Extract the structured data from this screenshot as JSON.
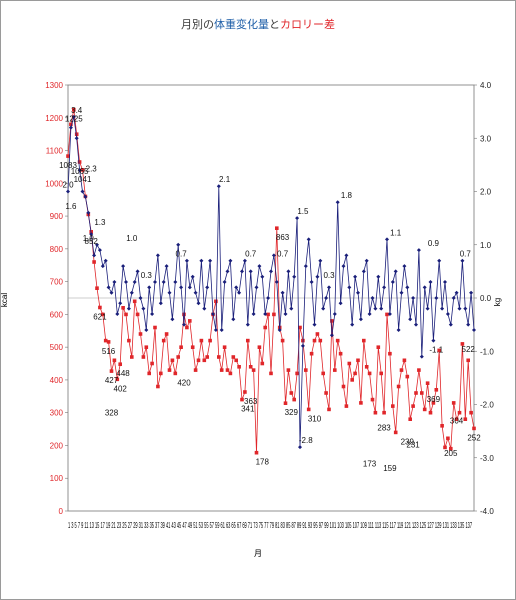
{
  "chart_data": {
    "type": "line",
    "title_parts": [
      {
        "text": "月別の",
        "color": "#3a3a3a"
      },
      {
        "text": "体重変化量",
        "color": "#1f5fa8"
      },
      {
        "text": "と",
        "color": "#3a3a3a"
      },
      {
        "text": "カロリー差",
        "color": "#e0262a"
      }
    ],
    "xlabel": "月",
    "ylabel_left": "kcal",
    "ylabel_right": "kg",
    "y_left": {
      "min": 0,
      "max": 1300,
      "step": 100,
      "ticks": [
        "0",
        "100",
        "200",
        "300",
        "400",
        "500",
        "600",
        "700",
        "800",
        "900",
        "1000",
        "1100",
        "1200",
        "1300"
      ]
    },
    "y_right": {
      "min": -4.0,
      "max": 4.0,
      "step": 1.0,
      "ticks": [
        "-4.0",
        "-3.0",
        "-2.0",
        "-1.0",
        "0.0",
        "1.0",
        "2.0",
        "3.0",
        "4.0"
      ]
    },
    "x_tick_labels": "1 3 5 7 9 11 13 15 17 19 21 23 25 27 29 31 33 35 37 39 41 43 45 47 49 51 53 55 57 59 61 63 65 67 69 71 73 75 77 79 81 83 85 87 89 91 93 95 97 99 101 103 105 107 109 111 113 115 117 119 121 123 125 127 129 131 133 135 137",
    "x": {
      "min": 1,
      "max": 137
    },
    "series": [
      {
        "name": "カロリー差",
        "axis": "left",
        "color": "#e0262a",
        "values": [
          1083,
          1180,
          1225,
          1150,
          1065,
          1041,
          960,
          905,
          852,
          760,
          680,
          621,
          600,
          520,
          516,
          427,
          460,
          402,
          448,
          620,
          600,
          520,
          470,
          640,
          600,
          540,
          470,
          500,
          420,
          450,
          560,
          380,
          420,
          520,
          540,
          430,
          460,
          420,
          470,
          500,
          600,
          560,
          580,
          500,
          430,
          460,
          520,
          460,
          470,
          520,
          600,
          640,
          470,
          430,
          500,
          430,
          420,
          470,
          460,
          440,
          340,
          363,
          520,
          440,
          430,
          178,
          500,
          450,
          560,
          600,
          420,
          600,
          863,
          560,
          520,
          329,
          430,
          360,
          340,
          420,
          560,
          520,
          430,
          310,
          480,
          520,
          540,
          520,
          420,
          360,
          310,
          580,
          430,
          520,
          480,
          380,
          320,
          450,
          400,
          420,
          460,
          330,
          520,
          440,
          420,
          340,
          300,
          500,
          420,
          300,
          600,
          480,
          320,
          240,
          380,
          430,
          460,
          410,
          280,
          320,
          360,
          430,
          360,
          310,
          390,
          300,
          330,
          370,
          490,
          260,
          194,
          222,
          190,
          330,
          280,
          300,
          510,
          280,
          460,
          300,
          252
        ]
      },
      {
        "name": "体重変化量",
        "axis": "right",
        "color": "#1a1f7a",
        "values": [
          2.0,
          3.2,
          3.4,
          3.0,
          2.4,
          2.0,
          1.9,
          1.6,
          1.2,
          0.8,
          1.0,
          0.9,
          0.6,
          0.7,
          0.2,
          0.1,
          0.3,
          -0.3,
          -0.1,
          0.6,
          0.3,
          -0.2,
          0.1,
          0.3,
          0.5,
          0.0,
          -0.2,
          -0.6,
          0.2,
          -0.3,
          0.3,
          0.8,
          -0.1,
          0.3,
          0.6,
          0.1,
          -0.4,
          0.3,
          1.0,
          0.2,
          -0.5,
          0.7,
          0.2,
          0.4,
          0.1,
          -0.1,
          0.7,
          -0.2,
          0.2,
          0.7,
          -0.3,
          -0.6,
          2.1,
          -0.6,
          0.3,
          0.5,
          0.7,
          -0.4,
          0.2,
          0.1,
          0.5,
          0.7,
          -0.5,
          0.5,
          -0.3,
          0.2,
          0.6,
          0.4,
          -0.3,
          0.0,
          0.5,
          0.8,
          0.3,
          -0.6,
          0.1,
          -0.3,
          0.5,
          -0.2,
          0.4,
          1.5,
          -2.8,
          -0.9,
          0.6,
          1.1,
          0.3,
          -0.5,
          0.4,
          0.7,
          -0.2,
          0.0,
          0.2,
          -0.7,
          -0.3,
          1.8,
          -0.1,
          0.6,
          0.8,
          0.2,
          -0.5,
          0.4,
          0.1,
          -0.4,
          0.5,
          0.7,
          -0.3,
          0.0,
          -0.2,
          0.4,
          -0.2,
          0.2,
          1.1,
          -0.3,
          0.3,
          0.5,
          -0.6,
          0.1,
          0.6,
          0.2,
          -0.4,
          0.0,
          -0.5,
          0.9,
          -1.1,
          0.2,
          -0.2,
          0.3,
          -0.8,
          0.0,
          0.7,
          -0.2,
          0.3,
          -0.3,
          -0.5,
          0.0,
          0.1,
          -0.2,
          0.7,
          -0.2,
          -0.5,
          0.1,
          -0.6
        ]
      }
    ],
    "data_labels_left": [
      {
        "i": 1,
        "t": "1083"
      },
      {
        "i": 3,
        "t": "1225"
      },
      {
        "i": 5,
        "t": "1065"
      },
      {
        "i": 6,
        "t": "1041"
      },
      {
        "i": 9,
        "t": "852"
      },
      {
        "i": 12,
        "t": "621"
      },
      {
        "i": 15,
        "t": "516"
      },
      {
        "i": 16,
        "t": "427"
      },
      {
        "i": 18,
        "t": "402"
      },
      {
        "i": 19,
        "t": "448"
      },
      {
        "i": 16,
        "t": "328"
      },
      {
        "i": 40,
        "t": "420"
      },
      {
        "i": 61,
        "t": "341"
      },
      {
        "i": 62,
        "t": "363"
      },
      {
        "i": 66,
        "t": "178"
      },
      {
        "i": 73,
        "t": "863"
      },
      {
        "i": 76,
        "t": "329"
      },
      {
        "i": 84,
        "t": "310"
      },
      {
        "i": 102,
        "t": "173"
      },
      {
        "i": 107,
        "t": "283"
      },
      {
        "i": 109,
        "t": "159"
      },
      {
        "i": 115,
        "t": "239"
      },
      {
        "i": 117,
        "t": "231"
      },
      {
        "i": 129,
        "t": "205"
      },
      {
        "i": 137,
        "t": "252"
      },
      {
        "i": 135,
        "t": "522"
      },
      {
        "i": 123,
        "t": "369"
      },
      {
        "i": 131,
        "t": "304"
      }
    ],
    "data_labels_right": [
      {
        "i": 2,
        "t": "1.6"
      },
      {
        "i": 4,
        "t": "3.4"
      },
      {
        "i": 1,
        "t": "2.0"
      },
      {
        "i": 9,
        "t": "2.3"
      },
      {
        "i": 8,
        "t": "1.0"
      },
      {
        "i": 12,
        "t": "1.3"
      },
      {
        "i": 22,
        "t": "1.0"
      },
      {
        "i": 53,
        "t": "2.1"
      },
      {
        "i": 80,
        "t": "1.5"
      },
      {
        "i": 81,
        "t": "-2.8"
      },
      {
        "i": 94,
        "t": "1.8"
      },
      {
        "i": 111,
        "t": "1.1"
      },
      {
        "i": 123,
        "t": "0.9"
      },
      {
        "i": 124,
        "t": "-1.1"
      },
      {
        "i": 134,
        "t": "0.7"
      },
      {
        "i": 73,
        "t": "0.7"
      },
      {
        "i": 62,
        "t": "0.7"
      },
      {
        "i": 39,
        "t": "0.7"
      },
      {
        "i": 88,
        "t": "0.3"
      },
      {
        "i": 27,
        "t": "0.3"
      }
    ]
  }
}
